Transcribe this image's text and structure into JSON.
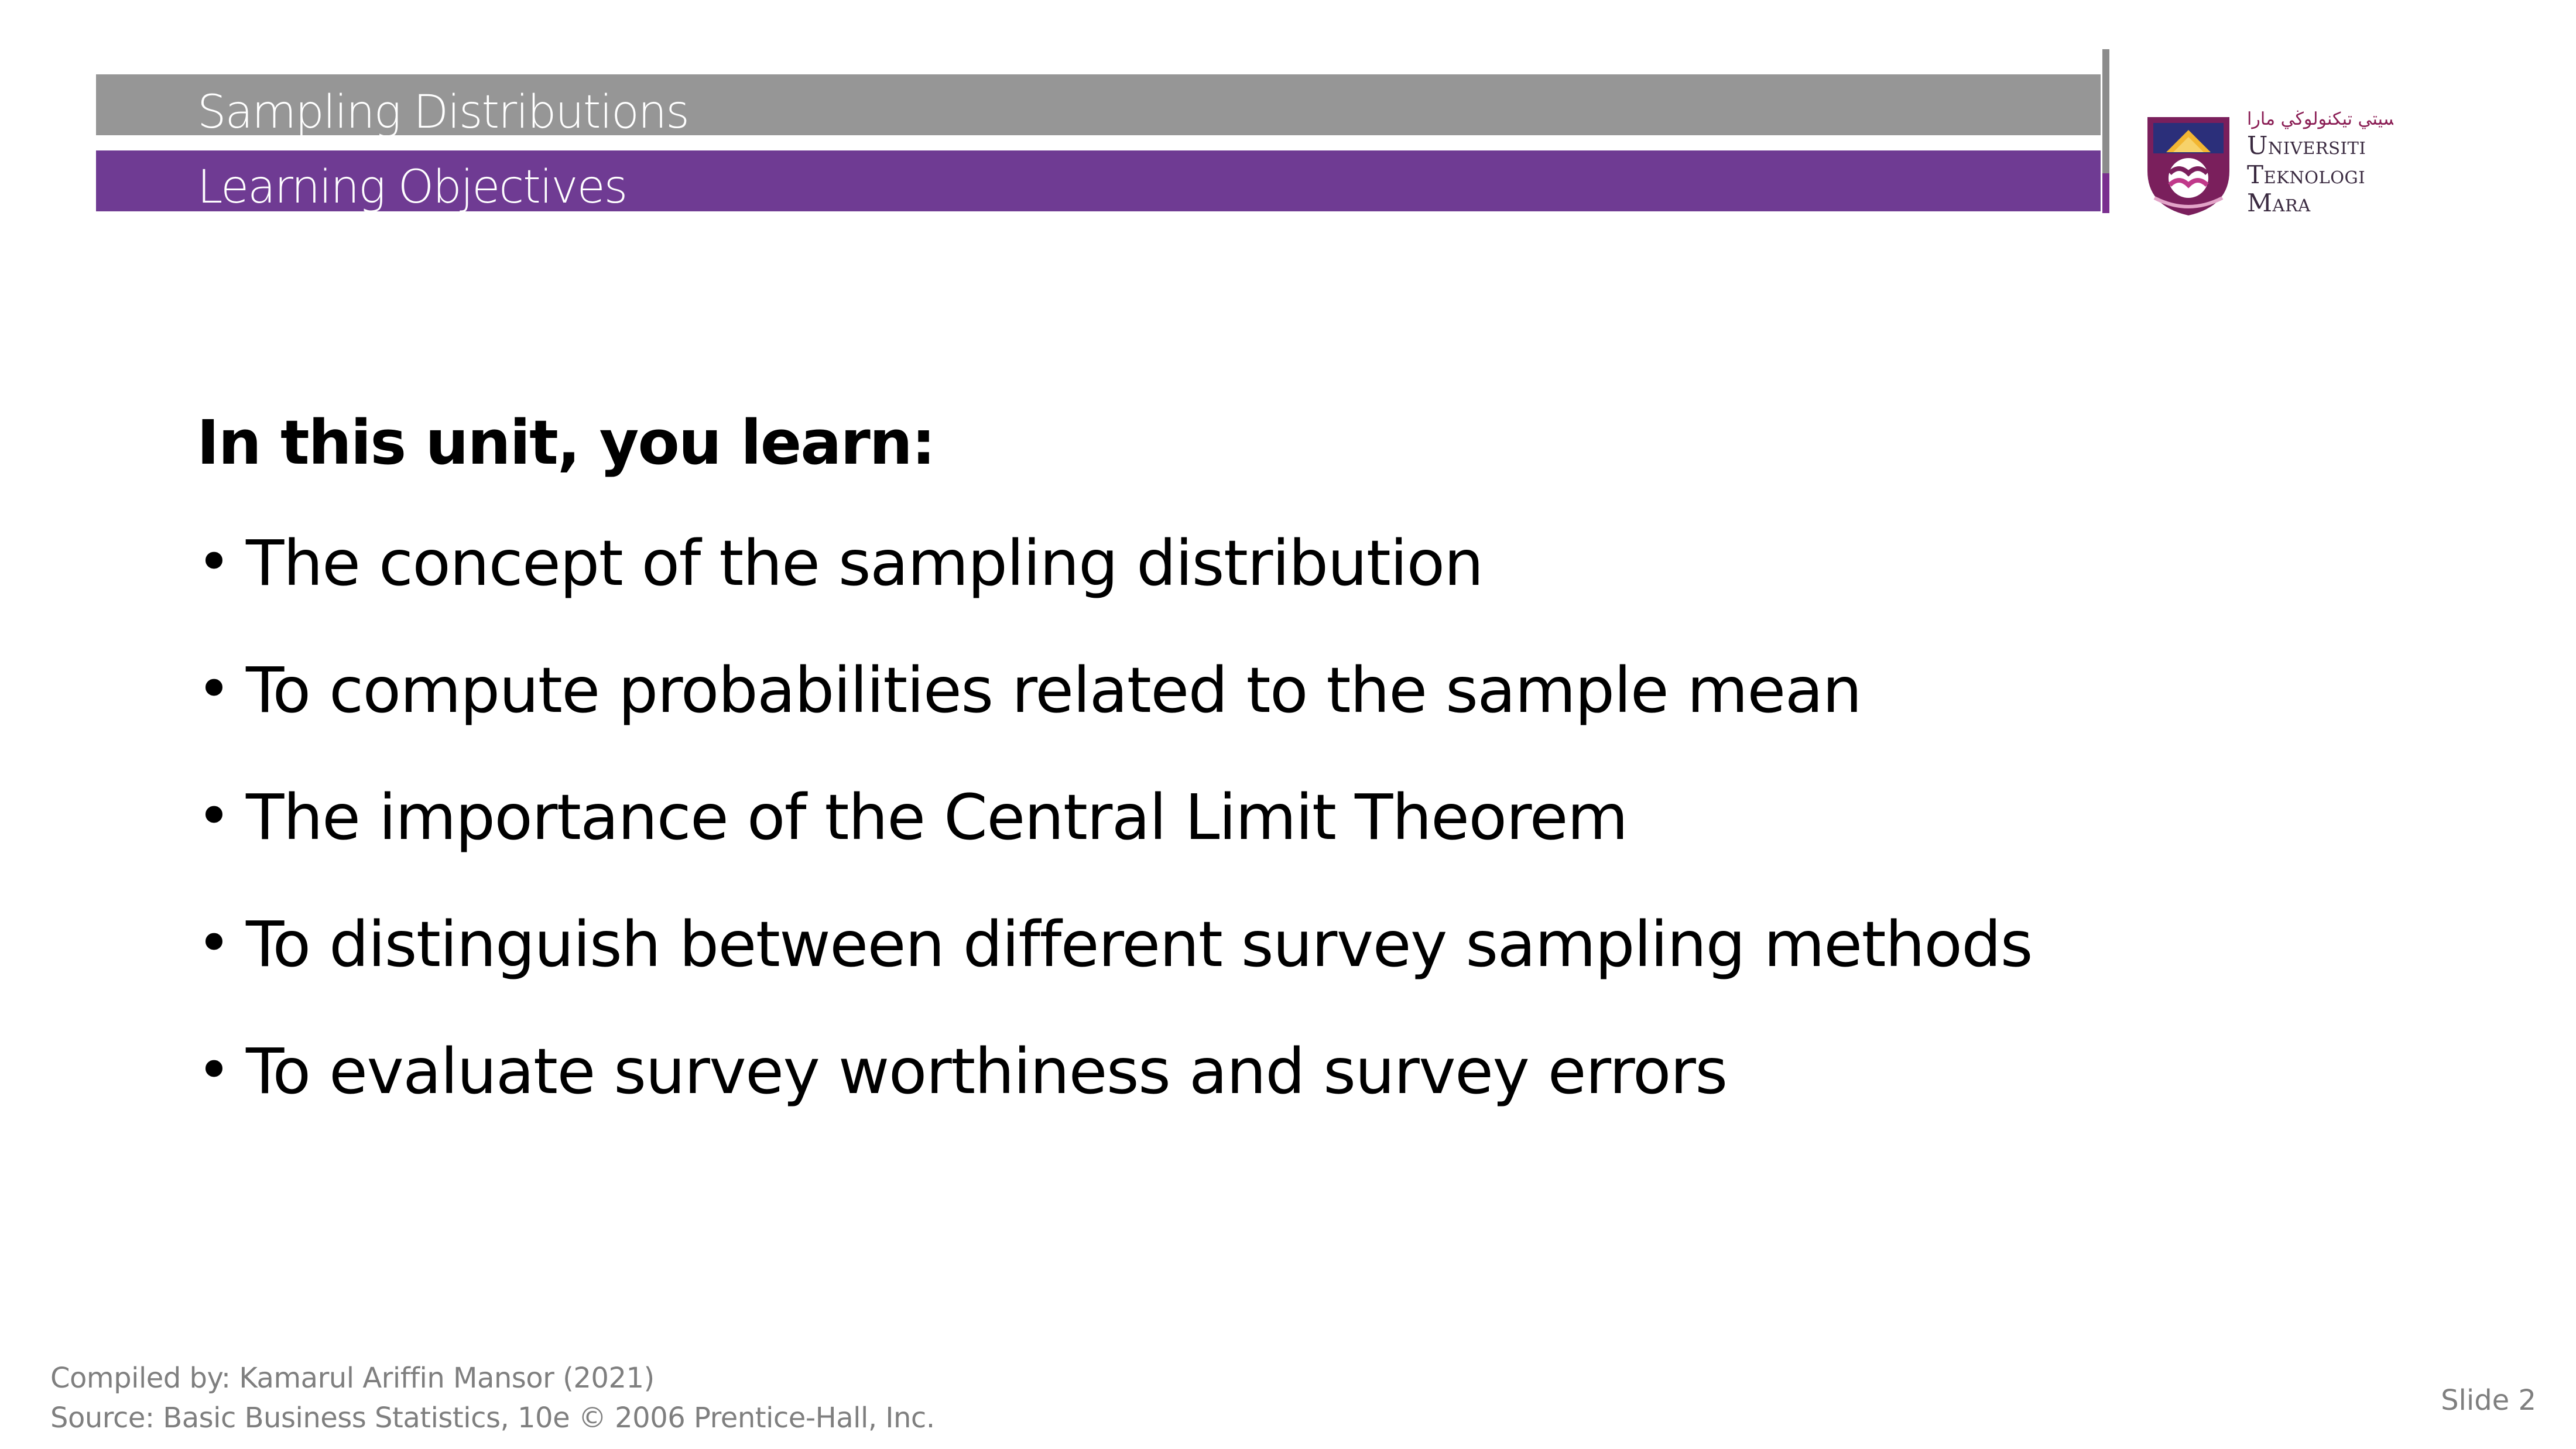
{
  "header": {
    "title": "Sampling Distributions",
    "subtitle": "Learning Objectives"
  },
  "logo": {
    "script_text": "اونيۏرسيتي تيكنولوڬي مارا",
    "line1": "Universiti",
    "line2": "Teknologi",
    "line3": "Mara"
  },
  "content": {
    "heading": "In this unit, you learn:",
    "bullets": [
      "The concept of the sampling distribution",
      "To compute probabilities related to the sample mean",
      "The importance of the Central Limit Theorem",
      "To distinguish between different survey sampling methods",
      "To evaluate survey worthiness and survey errors"
    ]
  },
  "footer": {
    "compiled_by": "Compiled by: Kamarul Ariffin Mansor (2021)",
    "source": "Source: Basic Business Statistics, 10e © 2006 Prentice-Hall, Inc.",
    "slide_number": "Slide 2"
  },
  "colors": {
    "gray_band": "#969696",
    "purple_band": "#6f3b93",
    "footer_text": "#7f7f7f"
  }
}
